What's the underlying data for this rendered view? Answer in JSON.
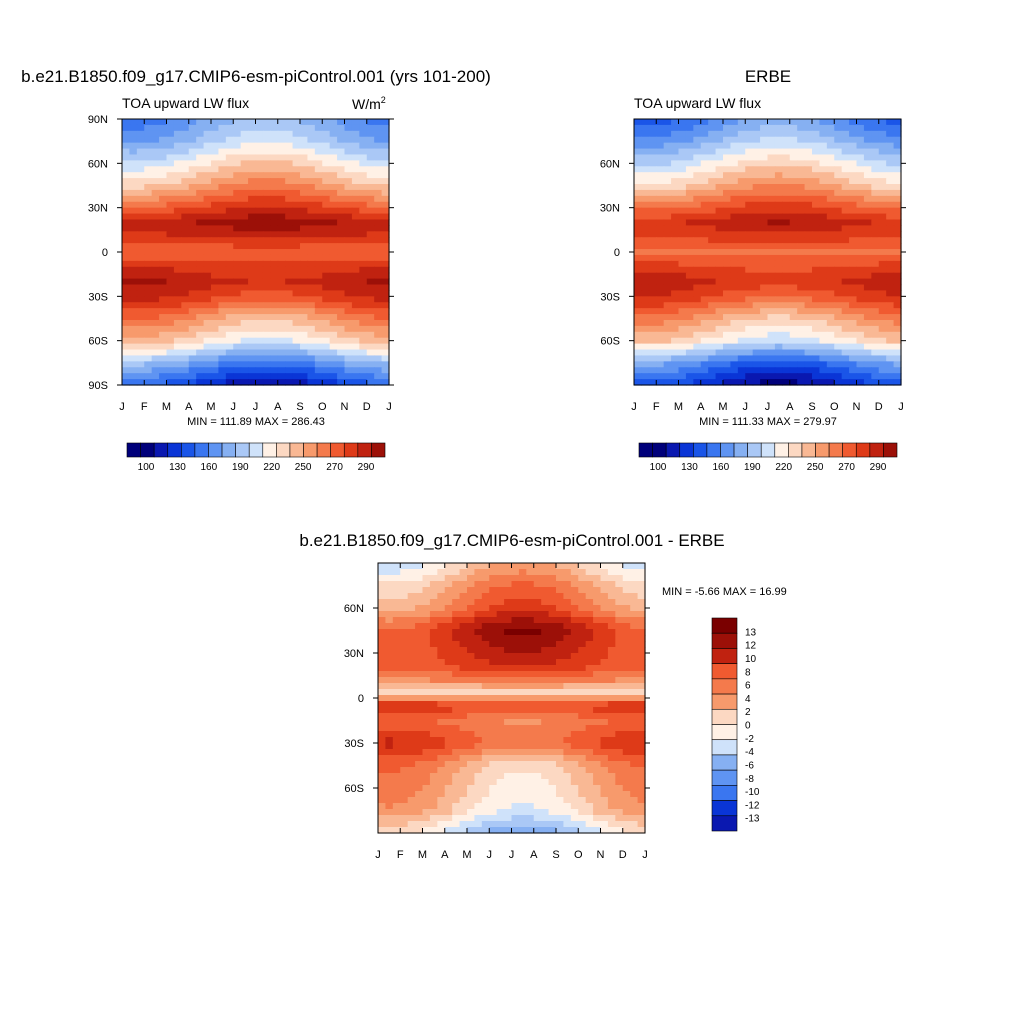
{
  "chart_data": [
    {
      "type": "heatmap",
      "title": "b.e21.B1850.f09_g17.CMIP6-esm-piControl.001 (yrs 101-200)",
      "subtitle": "TOA upward LW flux",
      "units_base": "W/m",
      "units_exp": "2",
      "x_ticks": [
        "J",
        "F",
        "M",
        "A",
        "M",
        "J",
        "J",
        "A",
        "S",
        "O",
        "N",
        "D",
        "J"
      ],
      "y_ticks": [
        {
          "lat": 90,
          "label": "90N"
        },
        {
          "lat": 60,
          "label": "60N"
        },
        {
          "lat": 30,
          "label": "30N"
        },
        {
          "lat": 0,
          "label": "0"
        },
        {
          "lat": -30,
          "label": "30S"
        },
        {
          "lat": -60,
          "label": "60S"
        },
        {
          "lat": -90,
          "label": "90S"
        }
      ],
      "ylim": [
        -90,
        90
      ],
      "min_max_text": "MIN = 111.89 MAX = 286.43",
      "min": 111.89,
      "max": 286.43,
      "lat_profile": [
        {
          "lat": 90,
          "value": 160
        },
        {
          "lat": 75,
          "value": 175
        },
        {
          "lat": 60,
          "value": 200
        },
        {
          "lat": 45,
          "value": 225
        },
        {
          "lat": 30,
          "value": 255
        },
        {
          "lat": 20,
          "value": 275
        },
        {
          "lat": 10,
          "value": 265
        },
        {
          "lat": 0,
          "value": 245
        },
        {
          "lat": -10,
          "value": 260
        },
        {
          "lat": -20,
          "value": 270
        },
        {
          "lat": -30,
          "value": 260
        },
        {
          "lat": -45,
          "value": 230
        },
        {
          "lat": -60,
          "value": 205
        },
        {
          "lat": -75,
          "value": 160
        },
        {
          "lat": -90,
          "value": 125
        }
      ],
      "colorbar": {
        "levels": [
          100,
          110,
          120,
          130,
          140,
          150,
          160,
          170,
          180,
          190,
          200,
          210,
          220,
          230,
          240,
          250,
          260,
          270,
          280,
          290
        ],
        "labels": [
          "100",
          "130",
          "160",
          "190",
          "220",
          "250",
          "270",
          "290"
        ]
      }
    },
    {
      "type": "heatmap",
      "title": "ERBE",
      "subtitle": "TOA upward LW flux",
      "x_ticks": [
        "J",
        "F",
        "M",
        "A",
        "M",
        "J",
        "J",
        "A",
        "S",
        "O",
        "N",
        "D",
        "J"
      ],
      "y_ticks": [
        {
          "lat": 60,
          "label": "60N"
        },
        {
          "lat": 30,
          "label": "30N"
        },
        {
          "lat": 0,
          "label": "0"
        },
        {
          "lat": -30,
          "label": "30S"
        },
        {
          "lat": -60,
          "label": "60S"
        }
      ],
      "ylim": [
        -90,
        90
      ],
      "min_max_text": "MIN = 111.33 MAX = 279.97",
      "min": 111.33,
      "max": 279.97,
      "lat_profile": [
        {
          "lat": 90,
          "value": 150
        },
        {
          "lat": 75,
          "value": 170
        },
        {
          "lat": 60,
          "value": 195
        },
        {
          "lat": 45,
          "value": 220
        },
        {
          "lat": 30,
          "value": 250
        },
        {
          "lat": 20,
          "value": 268
        },
        {
          "lat": 10,
          "value": 258
        },
        {
          "lat": 0,
          "value": 240
        },
        {
          "lat": -10,
          "value": 255
        },
        {
          "lat": -20,
          "value": 265
        },
        {
          "lat": -30,
          "value": 255
        },
        {
          "lat": -45,
          "value": 225
        },
        {
          "lat": -60,
          "value": 200
        },
        {
          "lat": -75,
          "value": 150
        },
        {
          "lat": -90,
          "value": 120
        }
      ],
      "colorbar": {
        "levels": [
          100,
          110,
          120,
          130,
          140,
          150,
          160,
          170,
          180,
          190,
          200,
          210,
          220,
          230,
          240,
          250,
          260,
          270,
          280,
          290
        ],
        "labels": [
          "100",
          "130",
          "160",
          "190",
          "220",
          "250",
          "270",
          "290"
        ]
      }
    },
    {
      "type": "heatmap",
      "title": "b.e21.B1850.f09_g17.CMIP6-esm-piControl.001 - ERBE",
      "x_ticks": [
        "J",
        "F",
        "M",
        "A",
        "M",
        "J",
        "J",
        "A",
        "S",
        "O",
        "N",
        "D",
        "J"
      ],
      "y_ticks": [
        {
          "lat": 60,
          "label": "60N"
        },
        {
          "lat": 30,
          "label": "30N"
        },
        {
          "lat": 0,
          "label": "0"
        },
        {
          "lat": -30,
          "label": "30S"
        },
        {
          "lat": -60,
          "label": "60S"
        }
      ],
      "ylim": [
        -90,
        90
      ],
      "min_max_text": "MIN =  -5.66 MAX =  16.99",
      "min": -5.66,
      "max": 16.99,
      "lat_profile": [
        {
          "lat": 90,
          "value": 1
        },
        {
          "lat": 75,
          "value": 4
        },
        {
          "lat": 60,
          "value": 6
        },
        {
          "lat": 45,
          "value": 10
        },
        {
          "lat": 30,
          "value": 9
        },
        {
          "lat": 20,
          "value": 8
        },
        {
          "lat": 10,
          "value": 5
        },
        {
          "lat": 5,
          "value": 1
        },
        {
          "lat": 0,
          "value": 4
        },
        {
          "lat": -5,
          "value": 9
        },
        {
          "lat": -15,
          "value": 6
        },
        {
          "lat": -30,
          "value": 8
        },
        {
          "lat": -45,
          "value": 4
        },
        {
          "lat": -60,
          "value": 3
        },
        {
          "lat": -75,
          "value": 2
        },
        {
          "lat": -90,
          "value": -2
        }
      ],
      "colorbar": {
        "levels": [
          -13,
          -12,
          -10,
          -8,
          -6,
          -4,
          -2,
          0,
          2,
          4,
          6,
          8,
          10,
          12,
          13
        ],
        "labels": [
          "13",
          "12",
          "10",
          "8",
          "6",
          "4",
          "2",
          "0",
          "-2",
          "-4",
          "-6",
          "-8",
          "-10",
          "-12",
          "-13"
        ]
      }
    }
  ]
}
